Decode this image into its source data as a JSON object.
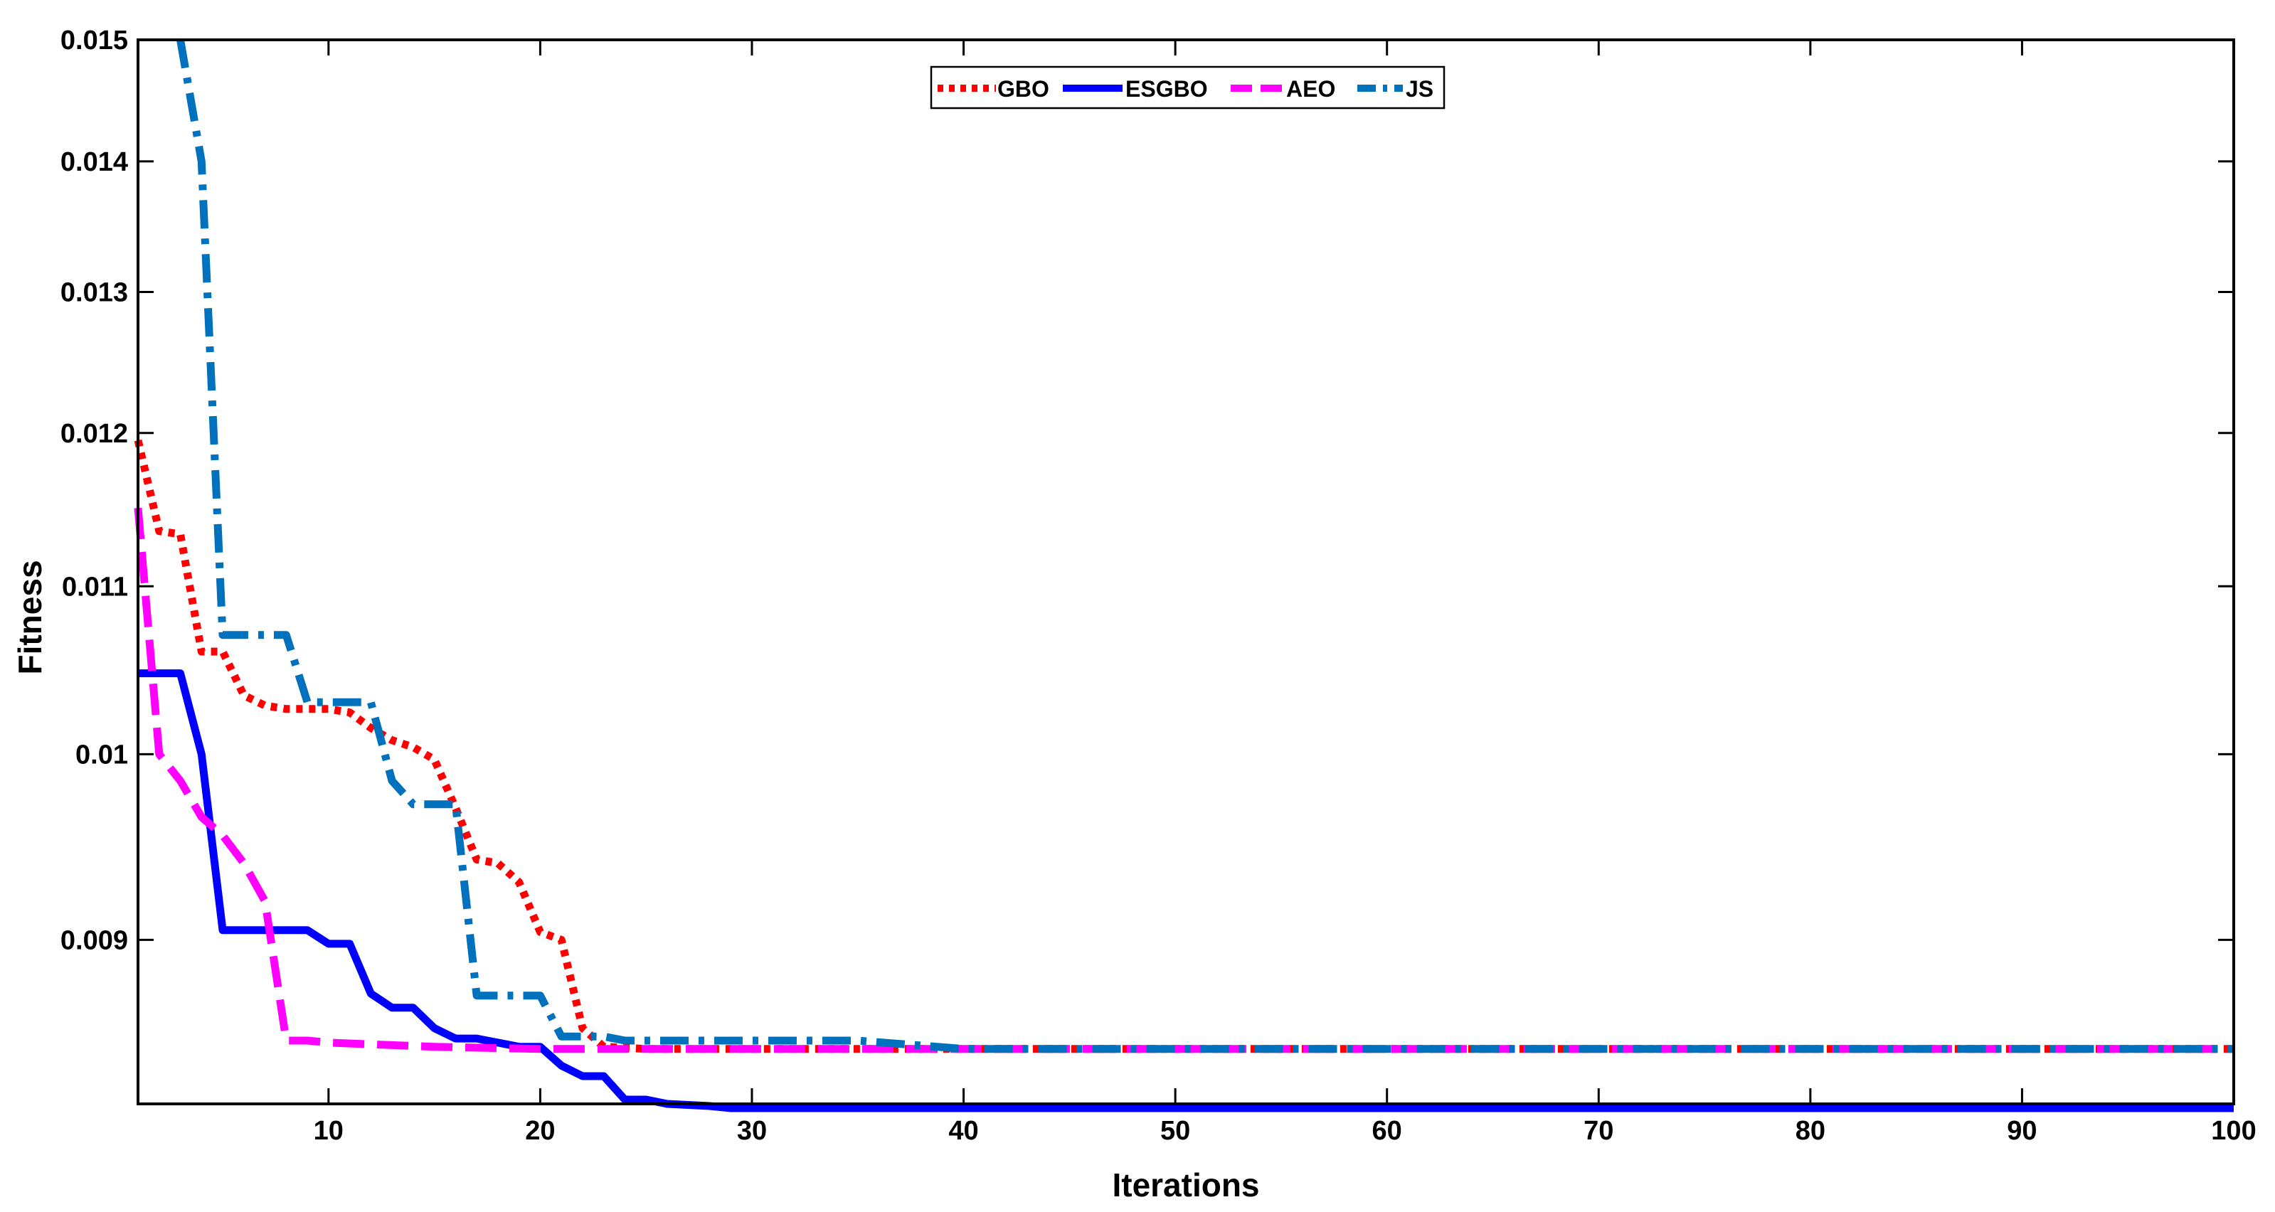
{
  "chart_data": {
    "type": "line",
    "xlabel": "Iterations",
    "ylabel": "Fitness",
    "xlim": [
      1,
      100
    ],
    "ylim": [
      0.0082,
      0.015
    ],
    "y_scale": "log",
    "grid": false,
    "legend_placement": "top-center",
    "x_ticks": [
      10,
      20,
      30,
      40,
      50,
      60,
      70,
      80,
      90,
      100
    ],
    "y_ticks": [
      0.009,
      0.01,
      0.011,
      0.012,
      0.013,
      0.014,
      0.015
    ],
    "series": [
      {
        "name": "GBO",
        "color": "#ff0000",
        "style": "dotted",
        "points": [
          [
            1,
            0.01195
          ],
          [
            2,
            0.01135
          ],
          [
            3,
            0.01133
          ],
          [
            4,
            0.0106
          ],
          [
            5,
            0.0106
          ],
          [
            6,
            0.01034
          ],
          [
            7,
            0.01028
          ],
          [
            8,
            0.01026
          ],
          [
            10,
            0.01026
          ],
          [
            11,
            0.01024
          ],
          [
            12,
            0.01015
          ],
          [
            13,
            0.01008
          ],
          [
            14,
            0.01004
          ],
          [
            15,
            0.00997
          ],
          [
            16,
            0.0097
          ],
          [
            17,
            0.00942
          ],
          [
            18,
            0.0094
          ],
          [
            19,
            0.0093
          ],
          [
            20,
            0.00904
          ],
          [
            21,
            0.009
          ],
          [
            22,
            0.00856
          ],
          [
            23,
            0.00847
          ],
          [
            25,
            0.00846
          ],
          [
            30,
            0.00846
          ],
          [
            40,
            0.00846
          ],
          [
            50,
            0.00846
          ],
          [
            60,
            0.00846
          ],
          [
            70,
            0.00846
          ],
          [
            80,
            0.00846
          ],
          [
            90,
            0.00846
          ],
          [
            100,
            0.00846
          ]
        ]
      },
      {
        "name": "ESGBO",
        "color": "#0000ff",
        "style": "solid",
        "points": [
          [
            1,
            0.01047
          ],
          [
            2,
            0.01047
          ],
          [
            3,
            0.01047
          ],
          [
            4,
            0.01
          ],
          [
            5,
            0.00905
          ],
          [
            6,
            0.00905
          ],
          [
            7,
            0.00905
          ],
          [
            8,
            0.00905
          ],
          [
            9,
            0.00905
          ],
          [
            10,
            0.00898
          ],
          [
            11,
            0.00898
          ],
          [
            12,
            0.00873
          ],
          [
            13,
            0.00866
          ],
          [
            14,
            0.00866
          ],
          [
            15,
            0.00856
          ],
          [
            16,
            0.00851
          ],
          [
            17,
            0.00851
          ],
          [
            18,
            0.00849
          ],
          [
            19,
            0.00847
          ],
          [
            20,
            0.00847
          ],
          [
            21,
            0.00838
          ],
          [
            22,
            0.00833
          ],
          [
            23,
            0.00833
          ],
          [
            24,
            0.00822
          ],
          [
            25,
            0.00822
          ],
          [
            26,
            0.0082
          ],
          [
            28,
            0.00819
          ],
          [
            29,
            0.00818
          ],
          [
            40,
            0.00818
          ],
          [
            50,
            0.00818
          ],
          [
            60,
            0.00818
          ],
          [
            70,
            0.00818
          ],
          [
            80,
            0.00818
          ],
          [
            90,
            0.00818
          ],
          [
            100,
            0.00818
          ]
        ]
      },
      {
        "name": "AEO",
        "color": "#ff00ff",
        "style": "dashed",
        "points": [
          [
            1,
            0.0115
          ],
          [
            2,
            0.01
          ],
          [
            3,
            0.00985
          ],
          [
            4,
            0.00965
          ],
          [
            5,
            0.00955
          ],
          [
            6,
            0.0094
          ],
          [
            7,
            0.0092
          ],
          [
            8,
            0.0085
          ],
          [
            9,
            0.0085
          ],
          [
            10,
            0.00849
          ],
          [
            15,
            0.00847
          ],
          [
            20,
            0.00846
          ],
          [
            30,
            0.00846
          ],
          [
            40,
            0.00846
          ],
          [
            50,
            0.00846
          ],
          [
            60,
            0.00846
          ],
          [
            70,
            0.00846
          ],
          [
            80,
            0.00846
          ],
          [
            90,
            0.00846
          ],
          [
            100,
            0.00846
          ]
        ]
      },
      {
        "name": "JS",
        "color": "#0072bd",
        "style": "dashdot",
        "points": [
          [
            3,
            0.015
          ],
          [
            4,
            0.014
          ],
          [
            5,
            0.0107
          ],
          [
            6,
            0.0107
          ],
          [
            7,
            0.0107
          ],
          [
            8,
            0.0107
          ],
          [
            9,
            0.0103
          ],
          [
            10,
            0.0103
          ],
          [
            11,
            0.0103
          ],
          [
            12,
            0.0103
          ],
          [
            13,
            0.00985
          ],
          [
            14,
            0.00972
          ],
          [
            15,
            0.00972
          ],
          [
            16,
            0.00972
          ],
          [
            17,
            0.00872
          ],
          [
            18,
            0.00872
          ],
          [
            19,
            0.00872
          ],
          [
            20,
            0.00872
          ],
          [
            21,
            0.00852
          ],
          [
            22,
            0.00852
          ],
          [
            23,
            0.00852
          ],
          [
            24,
            0.0085
          ],
          [
            35,
            0.0085
          ],
          [
            40,
            0.00846
          ],
          [
            50,
            0.00846
          ],
          [
            60,
            0.00846
          ],
          [
            70,
            0.00846
          ],
          [
            80,
            0.00846
          ],
          [
            90,
            0.00846
          ],
          [
            100,
            0.00846
          ]
        ]
      }
    ]
  }
}
